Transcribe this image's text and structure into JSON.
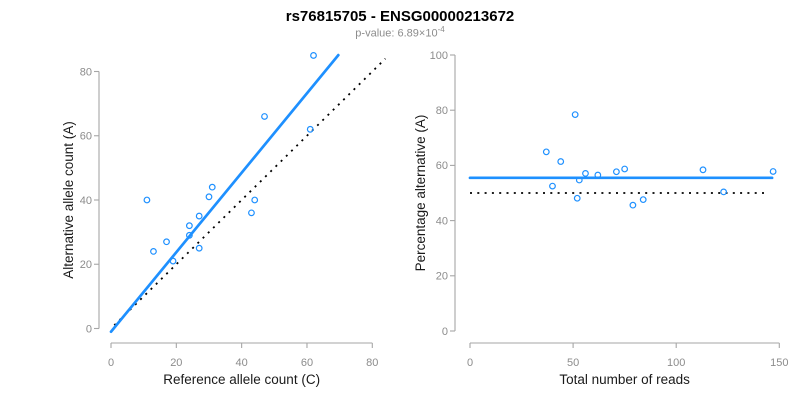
{
  "header": {
    "title": "rs76815705 - ENSG00000213672",
    "p_value_prefix": "p-value: 6.89×10",
    "p_value_exponent": "-4"
  },
  "colors": {
    "fit_line": "#1E90FF",
    "reference_line": "#000000",
    "marker": "#1E90FF",
    "axis_line": "#A6A6A6",
    "tick_label": "#8C8C8C",
    "axis_title": "#1A1A1A",
    "title": "#000000",
    "subtitle": "#8C8C8C"
  },
  "chart_data": [
    {
      "id": "allele-counts",
      "type": "scatter",
      "xlabel": "Reference allele count (C)",
      "ylabel": "Alternative allele count (A)",
      "xlim": [
        0,
        80
      ],
      "ylim": [
        0,
        80
      ],
      "xticks": [
        0,
        20,
        40,
        60,
        80
      ],
      "yticks": [
        0,
        20,
        40,
        60,
        80
      ],
      "points": [
        [
          11,
          40
        ],
        [
          13,
          24
        ],
        [
          17,
          27
        ],
        [
          19,
          21
        ],
        [
          24,
          29
        ],
        [
          24,
          32
        ],
        [
          27,
          25
        ],
        [
          27,
          35
        ],
        [
          30,
          41
        ],
        [
          31,
          44
        ],
        [
          43,
          36
        ],
        [
          44,
          40
        ],
        [
          47,
          66
        ],
        [
          61,
          62
        ],
        [
          62,
          85
        ]
      ],
      "fit_line": {
        "x1": 0,
        "y1": -1,
        "x2": 69.6,
        "y2": 85.1
      },
      "reference_line": {
        "x1": 1,
        "y1": 1,
        "x2": 84,
        "y2": 84
      }
    },
    {
      "id": "percentage-vs-reads",
      "type": "scatter",
      "xlabel": "Total number of reads",
      "ylabel": "Percentage alternative (A)",
      "xlim": [
        0,
        150
      ],
      "ylim": [
        0,
        100
      ],
      "xticks": [
        0,
        50,
        100,
        150
      ],
      "yticks": [
        0,
        20,
        40,
        60,
        80,
        100
      ],
      "points": [
        [
          51,
          78.4
        ],
        [
          37,
          64.9
        ],
        [
          44,
          61.4
        ],
        [
          40,
          52.5
        ],
        [
          53,
          54.7
        ],
        [
          56,
          57.1
        ],
        [
          52,
          48.1
        ],
        [
          62,
          56.5
        ],
        [
          71,
          57.7
        ],
        [
          75,
          58.7
        ],
        [
          79,
          45.6
        ],
        [
          84,
          47.6
        ],
        [
          113,
          58.4
        ],
        [
          123,
          50.4
        ],
        [
          147,
          57.8
        ]
      ],
      "fit_line": {
        "x1": 0,
        "y1": 55.5,
        "x2": 146.5,
        "y2": 55.5
      },
      "reference_line": {
        "x1": 0,
        "y1": 50,
        "x2": 144,
        "y2": 50
      }
    }
  ]
}
